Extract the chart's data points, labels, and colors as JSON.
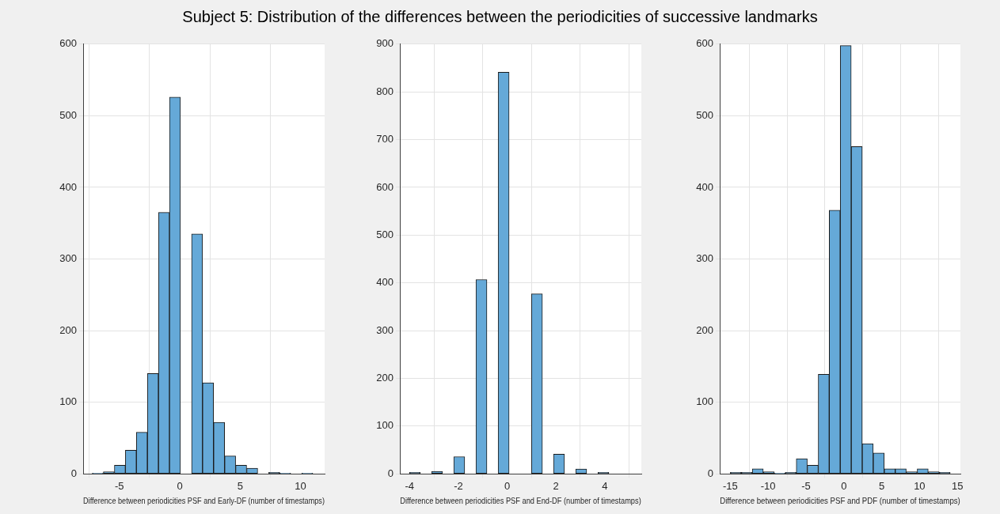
{
  "chart_data": [
    {
      "type": "histogram",
      "title": "Subject 5: Distribution of the differences between the periodicities of successive landmarks",
      "xlabel": "Difference between periodicities PSF and Early-DF (number of timestamps)",
      "color": "#65a9d8",
      "bins": [
        -7.24,
        -6.33,
        -5.41,
        -4.5,
        -3.59,
        -2.68,
        -1.76,
        -0.85,
        0.06,
        0.98,
        1.89,
        2.8,
        3.72,
        4.63,
        5.54,
        6.46,
        7.37,
        8.28,
        9.19,
        10.11,
        11.02
      ],
      "values": [
        1,
        3,
        12,
        33,
        58,
        140,
        365,
        526,
        0,
        335,
        127,
        72,
        25,
        12,
        8,
        0,
        2,
        1,
        0,
        1
      ],
      "xlim": [
        -8,
        12
      ],
      "xticks": [
        -5,
        0,
        5,
        10
      ],
      "ylim": [
        0,
        600
      ],
      "yticks": [
        0,
        100,
        200,
        300,
        400,
        500,
        600
      ],
      "grid": true
    },
    {
      "type": "histogram",
      "xlabel": "Difference between periodicities PSF and End-DF (number of timestamps)",
      "color": "#65a9d8",
      "bins": [
        -4.01,
        -3.56,
        -3.1,
        -2.65,
        -2.19,
        -1.74,
        -1.28,
        -0.83,
        -0.37,
        0.08,
        0.54,
        0.99,
        1.45,
        1.9,
        2.35,
        2.81,
        3.26,
        3.72,
        4.17,
        4.63,
        5.08
      ],
      "values": [
        3,
        0,
        5,
        0,
        36,
        0,
        407,
        0,
        841,
        0,
        0,
        377,
        0,
        41,
        0,
        10,
        0,
        3,
        0,
        0
      ],
      "xlim": [
        -4.4,
        5.5
      ],
      "xticks": [
        -4,
        -2,
        0,
        2,
        4
      ],
      "ylim": [
        0,
        900
      ],
      "yticks": [
        0,
        100,
        200,
        300,
        400,
        500,
        600,
        700,
        800,
        900
      ],
      "grid": true
    },
    {
      "type": "histogram",
      "xlabel": "Difference between periodicities PSF and PDF (number of timestamps)",
      "color": "#65a9d8",
      "bins": [
        -15,
        -13.55,
        -12.1,
        -10.64,
        -9.19,
        -7.74,
        -6.29,
        -4.83,
        -3.38,
        -1.93,
        -0.48,
        0.98,
        2.43,
        3.88,
        5.34,
        6.79,
        8.24,
        9.69,
        11.15,
        12.6,
        14.05
      ],
      "values": [
        2,
        2,
        7,
        3,
        1,
        2,
        21,
        12,
        139,
        368,
        598,
        457,
        42,
        29,
        7,
        7,
        3,
        7,
        3,
        2
      ],
      "xlim": [
        -16.4,
        15.4
      ],
      "xticks": [
        -15,
        -10,
        -5,
        0,
        5,
        10,
        15
      ],
      "ylim": [
        0,
        600
      ],
      "yticks": [
        0,
        100,
        200,
        300,
        400,
        500,
        600
      ],
      "grid": true
    }
  ]
}
